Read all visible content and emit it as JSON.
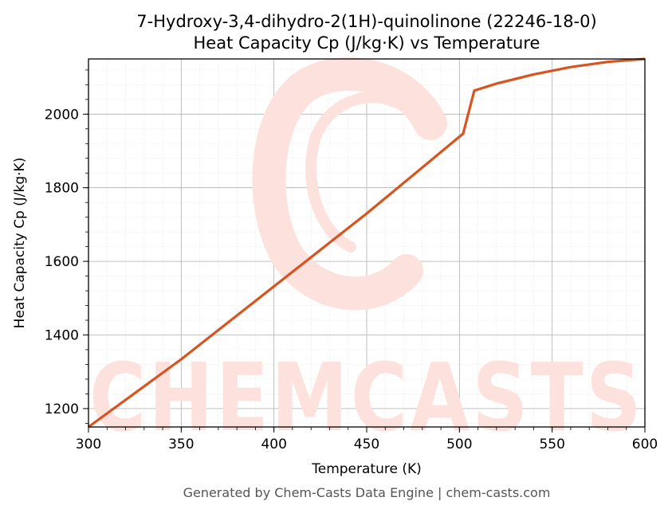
{
  "chart_data": {
    "type": "line",
    "title": "7-Hydroxy-3,4-dihydro-2(1H)-quinolinone (22246-18-0)",
    "subtitle": "Heat Capacity Cp (J/kg·K) vs Temperature",
    "xlabel": "Temperature (K)",
    "ylabel": "Heat Capacity Cp (J/kg·K)",
    "xlim": [
      300,
      600
    ],
    "ylim": [
      1150,
      2150
    ],
    "xticks": [
      300,
      350,
      400,
      450,
      500,
      550,
      600
    ],
    "yticks": [
      1200,
      1400,
      1600,
      1800,
      2000
    ],
    "grid": true,
    "series": [
      {
        "color": "#d9531e",
        "x": [
          300,
          350,
          400,
          450,
          502,
          508,
          520,
          540,
          560,
          580,
          600
        ],
        "y": [
          1150,
          1334,
          1532,
          1730,
          1947,
          2064,
          2083,
          2108,
          2128,
          2142,
          2150
        ]
      }
    ]
  },
  "watermark": {
    "text": "CHEMCASTS",
    "color": "#fde1dc"
  },
  "footer": {
    "text": "Generated by Chem-Casts Data Engine | chem-casts.com"
  }
}
